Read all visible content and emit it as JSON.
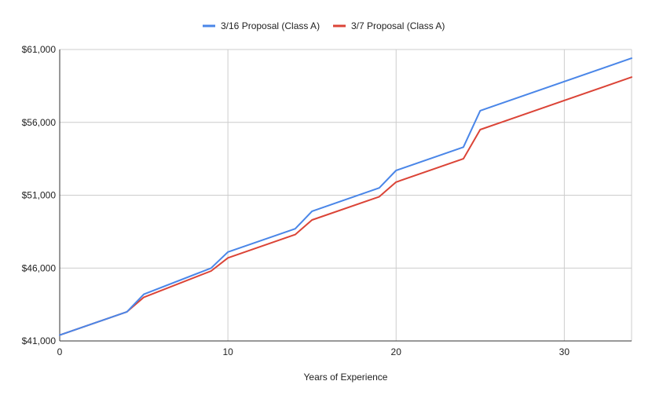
{
  "chart_data": {
    "type": "line",
    "title": "",
    "xlabel": "Years of Experience",
    "ylabel": "",
    "xlim": [
      0,
      34
    ],
    "ylim": [
      41000,
      61000
    ],
    "x_ticks": [
      0,
      10,
      20,
      30
    ],
    "x_tick_labels": [
      "0",
      "10",
      "20",
      "30"
    ],
    "y_ticks": [
      41000,
      46000,
      51000,
      56000,
      61000
    ],
    "y_tick_labels": [
      "$41,000",
      "$46,000",
      "$51,000",
      "$56,000",
      "$61,000"
    ],
    "grid": true,
    "legend_position": "top",
    "series": [
      {
        "name": "3/16 Proposal (Class A)",
        "color": "#4a86e8",
        "points": [
          [
            0,
            41400
          ],
          [
            4,
            43000
          ],
          [
            5,
            44200
          ],
          [
            9,
            46000
          ],
          [
            10,
            47100
          ],
          [
            14,
            48700
          ],
          [
            15,
            49900
          ],
          [
            19,
            51500
          ],
          [
            20,
            52700
          ],
          [
            24,
            54300
          ],
          [
            25,
            56800
          ],
          [
            34,
            60400
          ]
        ]
      },
      {
        "name": "3/7 Proposal (Class A)",
        "color": "#db4437",
        "points": [
          [
            0,
            41400
          ],
          [
            4,
            43000
          ],
          [
            5,
            44000
          ],
          [
            9,
            45800
          ],
          [
            10,
            46700
          ],
          [
            14,
            48300
          ],
          [
            15,
            49300
          ],
          [
            19,
            50900
          ],
          [
            20,
            51900
          ],
          [
            24,
            53500
          ],
          [
            25,
            55500
          ],
          [
            34,
            59100
          ]
        ]
      }
    ]
  }
}
